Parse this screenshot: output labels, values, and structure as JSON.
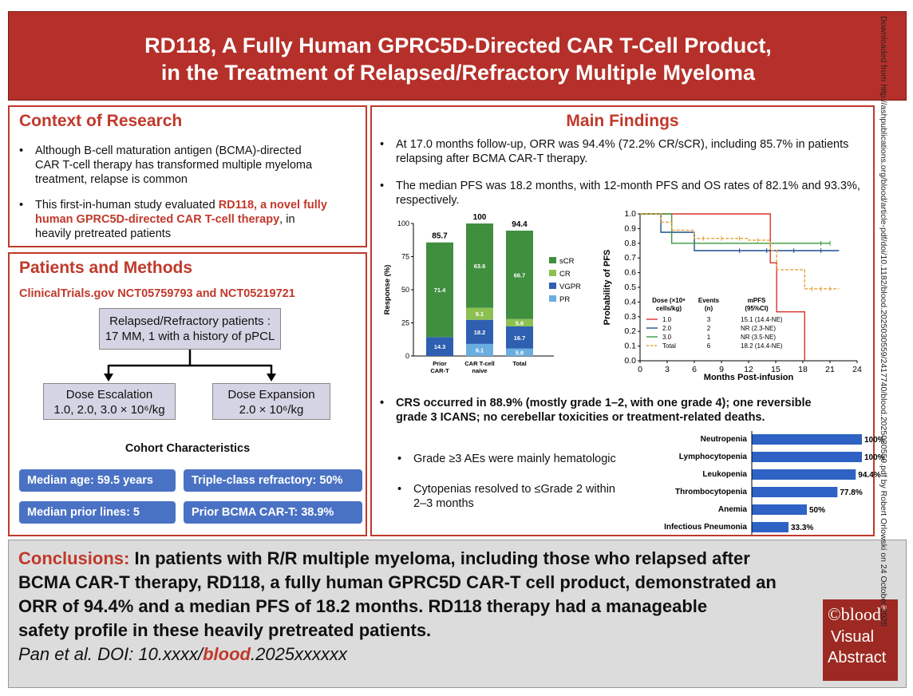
{
  "title": {
    "line1": "RD118, A Fully Human GPRC5D-Directed CAR T-Cell Product,",
    "line2": "in the Treatment of Relapsed/Refractory Multiple Myeloma"
  },
  "context": {
    "heading": "Context of Research",
    "b1": [
      "Although B-cell maturation antigen (BCMA)-directed",
      "CAR T-cell therapy has transformed multiple myeloma",
      "treatment, relapse is common"
    ],
    "b2_a": "This first-in-human study evaluated ",
    "b2_red1": "RD118, a novel fully",
    "b2_red2": "human GPRC5D-directed CAR T-cell therapy",
    "b2_b": ", in",
    "b2_c": "heavily pretreated patients"
  },
  "methods": {
    "heading": "Patients and Methods",
    "trials": "ClinicalTrials.gov NCT05759793 and NCT05219721",
    "patients_l1": "Relapsed/Refractory patients :",
    "patients_l2": "17 MM, 1 with a history of pPCL",
    "esc_l1": "Dose Escalation",
    "esc_l2": "1.0, 2.0, 3.0 × 10⁶/kg",
    "exp_l1": "Dose Expansion",
    "exp_l2": "2.0 × 10⁶/kg",
    "cohort_heading": "Cohort Characteristics",
    "pills": [
      "Median age: 59.5 years",
      "Triple-class refractory: 50%",
      "Median prior lines: 5",
      "Prior BCMA CAR-T: 38.9%"
    ]
  },
  "findings": {
    "heading": "Main Findings",
    "b1_l1": "At 17.0 months follow-up, ORR was 94.4% (72.2% CR/sCR), including 85.7% in patients",
    "b1_l2": "relapsing after BCMA CAR-T therapy.",
    "b2_l1": "The median PFS was 18.2 months, with 12-month PFS and OS rates of 82.1% and 93.3%,",
    "b2_l2": "respectively.",
    "b3_l1": "CRS occurred in 88.9% (mostly grade 1–2, with one grade 4); one reversible",
    "b3_l2": "grade 3 ICANS; no cerebellar toxicities or treatment-related deaths.",
    "sub1": "Grade ≥3 AEs were mainly hematologic",
    "sub2_l1": "Cytopenias resolved to ≤Grade 2 within",
    "sub2_l2": "2–3 months"
  },
  "chart_data": [
    {
      "type": "bar",
      "stacked": true,
      "ylabel": "Response (%)",
      "ylim": [
        0,
        100
      ],
      "yticks": [
        "0",
        "25",
        "50",
        "75",
        "100"
      ],
      "categories": [
        "Prior CAR-T",
        "CAR T-cell naive",
        "Total"
      ],
      "category_labels": [
        [
          "Prior",
          "CAR-T"
        ],
        [
          "CAR T-cell",
          "naive"
        ],
        [
          "Total"
        ]
      ],
      "totals": [
        "85.7",
        "100",
        "94.4"
      ],
      "series": [
        {
          "name": "PR",
          "color": "#6aaee0",
          "values": [
            0,
            9.1,
            5.6
          ],
          "labels": [
            "",
            "9.1",
            "5.6"
          ]
        },
        {
          "name": "VGPR",
          "color": "#2e5fb0",
          "values": [
            14.3,
            18.2,
            16.7
          ],
          "labels": [
            "14.3",
            "18.2",
            "16.7"
          ]
        },
        {
          "name": "CR",
          "color": "#8cc152",
          "values": [
            0,
            9.1,
            5.6
          ],
          "labels": [
            "",
            "9.1",
            "5.6"
          ]
        },
        {
          "name": "sCR",
          "color": "#3f8f3f",
          "values": [
            71.4,
            63.6,
            66.7
          ],
          "labels": [
            "71.4",
            "63.6",
            "66.7"
          ]
        }
      ],
      "legend": [
        "sCR",
        "CR",
        "VGPR",
        "PR"
      ]
    },
    {
      "type": "line",
      "ylabel": "Probability of PFS",
      "xlabel": "Months Post-infusion",
      "xlim": [
        0,
        24
      ],
      "ylim": [
        0,
        1
      ],
      "xticks": [
        "0",
        "3",
        "6",
        "9",
        "12",
        "15",
        "18",
        "21",
        "24"
      ],
      "yticks": [
        "0.0",
        "0.1",
        "0.2",
        "0.3",
        "0.4",
        "0.5",
        "0.6",
        "0.7",
        "0.8",
        "0.9",
        "1.0"
      ],
      "table_headers": [
        "Dose (×10⁶",
        "cells/kg)",
        "Events",
        "(n)",
        "mPFS",
        "(95%CI)"
      ],
      "series": [
        {
          "name": "1.0",
          "color": "#d9312b",
          "dashed": false,
          "events": "3",
          "mpfs": "15.1 (14.4-NE)",
          "x": [
            0,
            3,
            3,
            14.4,
            14.4,
            15.1,
            15.1,
            18.2,
            18.2
          ],
          "y": [
            1,
            1,
            1,
            1,
            0.667,
            0.667,
            0.333,
            0.333,
            0
          ]
        },
        {
          "name": "2.0",
          "color": "#1f4e8c",
          "dashed": false,
          "events": "2",
          "mpfs": "NR (2.3-NE)",
          "x": [
            0,
            2.3,
            2.3,
            6,
            6,
            22
          ],
          "y": [
            1,
            1,
            0.875,
            0.875,
            0.75,
            0.75
          ]
        },
        {
          "name": "3.0",
          "color": "#3a9a3a",
          "dashed": false,
          "events": "1",
          "mpfs": "NR (3.5-NE)",
          "x": [
            0,
            3.5,
            3.5,
            21
          ],
          "y": [
            1,
            1,
            0.8,
            0.8
          ]
        },
        {
          "name": "Total",
          "color": "#e8a03a",
          "dashed": true,
          "events": "6",
          "mpfs": "18.2 (14.4-NE)",
          "x": [
            0,
            2.3,
            2.3,
            3.5,
            3.5,
            6,
            6,
            12,
            12,
            14.4,
            14.4,
            15.1,
            15.1,
            18.2,
            18.2,
            22
          ],
          "y": [
            1,
            1,
            0.944,
            0.944,
            0.889,
            0.889,
            0.833,
            0.833,
            0.821,
            0.821,
            0.75,
            0.75,
            0.62,
            0.62,
            0.49,
            0.49
          ]
        }
      ]
    },
    {
      "type": "bar",
      "orientation": "horizontal",
      "xlim": [
        0,
        100
      ],
      "color": "#2e62c4",
      "categories": [
        "Neutropenia",
        "Lymphocytopenia",
        "Leukopenia",
        "Thrombocytopenia",
        "Anemia",
        "Infectious Pneumonia"
      ],
      "values": [
        100,
        100,
        94.4,
        77.8,
        50,
        33.3
      ],
      "labels": [
        "100%",
        "100%",
        "94.4%",
        "77.8%",
        "50%",
        "33.3%"
      ]
    }
  ],
  "conclusion": {
    "label": "Conclusions:",
    "l1": " In patients with R/R multiple myeloma, including those who relapsed after",
    "l2": "BCMA CAR-T therapy, RD118, a fully human GPRC5D CAR-T cell product, demonstrated an",
    "l3": "ORR of 94.4% and a median PFS of 18.2 months. RD118 therapy had a manageable",
    "l4": "safety profile in these heavily pretreated patients.",
    "cite_a": "Pan et al. DOI: 10.xxxx/",
    "cite_b": "blood",
    "cite_c": ".2025xxxxxx"
  },
  "logo": {
    "mark": "©",
    "word": "blood",
    "reg": "®",
    "l2": "Visual",
    "l3": "Abstract"
  },
  "side_text": "Downloaded from http://ashpublications.org/blood/article-pdf/doi/10.1182/blood.2025030559/2417740/blood.2025030559.pdf by Robert Orlowski on 24 October 2025"
}
